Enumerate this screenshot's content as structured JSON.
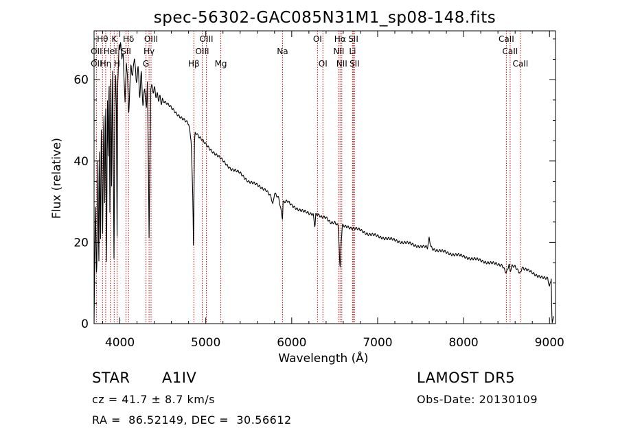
{
  "chart_data": {
    "type": "line",
    "title": "spec-56302-GAC085N31M1_sp08-148.fits",
    "xlabel": "Wavelength (Å)",
    "ylabel": "Flux (relative)",
    "xlim": [
      3700,
      9070
    ],
    "ylim": [
      0,
      72
    ],
    "xticks": [
      4000,
      5000,
      6000,
      7000,
      8000,
      9000
    ],
    "yticks": [
      0,
      20,
      40,
      60
    ],
    "series": [
      {
        "x": [
          3700,
          3715,
          3730,
          3745,
          3755,
          3765,
          3775,
          3785,
          3800,
          3815,
          3825,
          3835,
          3845,
          3855,
          3865,
          3875,
          3885,
          3895,
          3905,
          3915,
          3925,
          3933,
          3940,
          3950,
          3960,
          3968,
          3975,
          3990,
          4000,
          4010,
          4025,
          4040,
          4060,
          4075,
          4090,
          4101,
          4115,
          4130,
          4150,
          4170,
          4190,
          4210,
          4230,
          4250,
          4270,
          4290,
          4310,
          4320,
          4330,
          4340,
          4350,
          4360,
          4375,
          4400,
          4430,
          4460,
          4500,
          4550,
          4600,
          4650,
          4700,
          4750,
          4800,
          4830,
          4850,
          4857,
          4862,
          4867,
          4875,
          4890,
          4920,
          4960,
          5000,
          5050,
          5100,
          5150,
          5200,
          5250,
          5300,
          5400,
          5500,
          5600,
          5700,
          5760,
          5780,
          5800,
          5850,
          5893,
          5900,
          5950,
          6000,
          6100,
          6200,
          6250,
          6270,
          6280,
          6290,
          6300,
          6350,
          6400,
          6450,
          6500,
          6540,
          6552,
          6558,
          6563,
          6568,
          6575,
          6590,
          6620,
          6650,
          6700,
          6800,
          6900,
          7000,
          7100,
          7200,
          7300,
          7400,
          7500,
          7560,
          7580,
          7600,
          7620,
          7640,
          7700,
          7800,
          7900,
          8000,
          8100,
          8200,
          8300,
          8400,
          8450,
          8498,
          8530,
          8542,
          8560,
          8600,
          8662,
          8680,
          8700,
          8750,
          8800,
          8850,
          8900,
          8950,
          8980,
          9000,
          9020,
          9030,
          9050
        ],
        "y": [
          0,
          30,
          10,
          42,
          12,
          46,
          16,
          50,
          22,
          53,
          28,
          57,
          10,
          58,
          40,
          62,
          25,
          64,
          30,
          66,
          38,
          12,
          45,
          64,
          52,
          20,
          58,
          68,
          66,
          70,
          64,
          67,
          54,
          66,
          60,
          52,
          58,
          64,
          60,
          66,
          58,
          63,
          56,
          62,
          54,
          59,
          52,
          60,
          44,
          20,
          40,
          58,
          57,
          57,
          56,
          56,
          55,
          54,
          53,
          52,
          51,
          50,
          49,
          45,
          30,
          18,
          30,
          44,
          47,
          47,
          46,
          45,
          44,
          43,
          42,
          41,
          40,
          39,
          38,
          37,
          35,
          34,
          33,
          31,
          29,
          32,
          31,
          26,
          30,
          30,
          29,
          28,
          27,
          27,
          24,
          27,
          27,
          27,
          26,
          26,
          25,
          25,
          24,
          19,
          15,
          13,
          15,
          20,
          24,
          24,
          24,
          23.5,
          23,
          22,
          21.5,
          21,
          20.5,
          20,
          19.5,
          19,
          18.8,
          18.5,
          21,
          19,
          18.5,
          18,
          17.5,
          17,
          16.5,
          16,
          15.5,
          15,
          14.5,
          14.5,
          12.5,
          14.5,
          12.5,
          14,
          14,
          12.5,
          14,
          13.5,
          13,
          12.5,
          12,
          11.5,
          11,
          11,
          9,
          11,
          0,
          2
        ]
      }
    ],
    "line_labels": [
      {
        "text": "Hθ",
        "lambda": 3798,
        "row": 0
      },
      {
        "text": "OII",
        "lambda": 3727,
        "row": 1
      },
      {
        "text": "OII",
        "lambda": 3727,
        "row": 2
      },
      {
        "text": "K",
        "lambda": 3934,
        "row": 0
      },
      {
        "text": "HeI",
        "lambda": 3889,
        "row": 1
      },
      {
        "text": "Hη",
        "lambda": 3835,
        "row": 2
      },
      {
        "text": "Hδ",
        "lambda": 4101,
        "row": 0
      },
      {
        "text": "SII",
        "lambda": 4072,
        "row": 1
      },
      {
        "text": "H",
        "lambda": 3968,
        "row": 2
      },
      {
        "text": "OIII",
        "lambda": 4363,
        "row": 0
      },
      {
        "text": "Hγ",
        "lambda": 4340,
        "row": 1
      },
      {
        "text": "G",
        "lambda": 4304,
        "row": 2
      },
      {
        "text": "OIII",
        "lambda": 5007,
        "row": 0
      },
      {
        "text": "OIII",
        "lambda": 4959,
        "row": 1
      },
      {
        "text": "Hβ",
        "lambda": 4861,
        "row": 2
      },
      {
        "text": "Mg",
        "lambda": 5175,
        "row": 2
      },
      {
        "text": "Na",
        "lambda": 5893,
        "row": 1
      },
      {
        "text": "OI",
        "lambda": 6300,
        "row": 0
      },
      {
        "text": "OI",
        "lambda": 6363,
        "row": 2
      },
      {
        "text": "Hα",
        "lambda": 6563,
        "row": 0
      },
      {
        "text": "NII",
        "lambda": 6548,
        "row": 1
      },
      {
        "text": "NII",
        "lambda": 6583,
        "row": 2
      },
      {
        "text": "SII",
        "lambda": 6717,
        "row": 0
      },
      {
        "text": "Li",
        "lambda": 6708,
        "row": 1
      },
      {
        "text": "SII",
        "lambda": 6731,
        "row": 2
      },
      {
        "text": "CaII",
        "lambda": 8498,
        "row": 0
      },
      {
        "text": "CaII",
        "lambda": 8542,
        "row": 1
      },
      {
        "text": "CaII",
        "lambda": 8662,
        "row": 2
      }
    ],
    "line_wavelengths": [
      3727,
      3798,
      3835,
      3889,
      3934,
      3968,
      4072,
      4101,
      4304,
      4340,
      4363,
      4861,
      4959,
      5007,
      5175,
      5893,
      6300,
      6363,
      6548,
      6563,
      6583,
      6708,
      6717,
      6731,
      8498,
      8542,
      8662
    ],
    "line_marker_color": "#d00000"
  },
  "info": {
    "object_class": "STAR",
    "subclass": "A1IV",
    "survey": "LAMOST DR5",
    "cz": "cz = 41.7 ± 8.7 km/s",
    "obs_date": "Obs-Date: 20130109",
    "coords": "RA =  86.52149, DEC =  30.56612"
  }
}
